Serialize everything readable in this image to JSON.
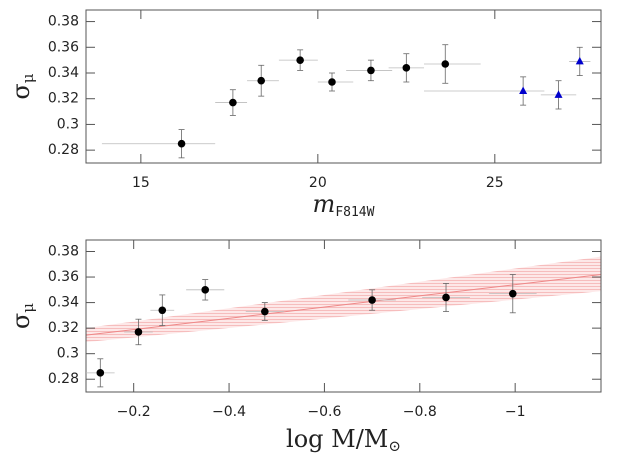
{
  "chart_data": [
    {
      "type": "scatter",
      "y_label": "σ",
      "y_label_sub": "μ",
      "x_label": "m",
      "x_label_sub": "F814W",
      "xlim": [
        13.45,
        28.0
      ],
      "ylim": [
        0.27,
        0.389
      ],
      "xticks": [
        15,
        20,
        25
      ],
      "yticks": [
        0.28,
        0.3,
        0.32,
        0.34,
        0.36,
        0.38
      ],
      "series": [
        {
          "color": "#000000",
          "marker": "circle",
          "x": [
            16.15,
            17.6,
            18.4,
            19.5,
            20.4,
            21.5,
            22.5,
            23.6
          ],
          "values": [
            0.285,
            0.317,
            0.334,
            0.35,
            0.333,
            0.342,
            0.344,
            0.347
          ],
          "yerr": [
            0.011,
            0.01,
            0.012,
            0.008,
            0.007,
            0.008,
            0.011,
            0.015
          ],
          "xlo": [
            13.9,
            17.1,
            18.0,
            18.9,
            20.0,
            20.8,
            22.0,
            23.0
          ],
          "xhi": [
            17.1,
            18.0,
            18.9,
            20.0,
            21.0,
            22.1,
            23.0,
            24.6
          ]
        },
        {
          "color": "#0000cc",
          "marker": "triangle",
          "x": [
            25.8,
            26.8,
            27.4
          ],
          "values": [
            0.326,
            0.323,
            0.349
          ],
          "yerr": [
            0.011,
            0.011,
            0.011
          ],
          "xlo": [
            23.0,
            26.3,
            27.1
          ],
          "xhi": [
            26.4,
            27.3,
            27.7
          ]
        }
      ]
    },
    {
      "type": "scatter",
      "y_label": "σ",
      "y_label_sub": "μ",
      "x_label": "log M/M",
      "x_label_sub": "⊙",
      "xlim": [
        -0.1,
        -1.18
      ],
      "ylim": [
        0.27,
        0.389
      ],
      "xticks": [
        {
          "value": -0.2,
          "label": "−0.2"
        },
        {
          "value": -0.4,
          "label": "−0.4"
        },
        {
          "value": -0.6,
          "label": "−0.6"
        },
        {
          "value": -0.8,
          "label": "−0.8"
        },
        {
          "value": -1,
          "label": "−1"
        }
      ],
      "yticks": [
        0.28,
        0.3,
        0.32,
        0.34,
        0.36,
        0.38
      ],
      "series": [
        {
          "color": "#000000",
          "marker": "circle",
          "x": [
            -0.13,
            -0.21,
            -0.26,
            -0.35,
            -0.475,
            -0.7,
            -0.855,
            -0.995
          ],
          "values": [
            0.285,
            0.317,
            0.334,
            0.35,
            0.333,
            0.342,
            0.344,
            0.347
          ],
          "yerr": [
            0.011,
            0.01,
            0.012,
            0.008,
            0.007,
            0.008,
            0.011,
            0.015
          ],
          "xerr": [
            0.03,
            0.03,
            0.025,
            0.04,
            0.04,
            0.05,
            0.05,
            0.05
          ]
        }
      ],
      "fit": {
        "color": "#e88",
        "x": [
          -0.1,
          -1.18
        ],
        "values": [
          0.3145,
          0.362
        ],
        "band_lo": [
          0.309,
          0.349
        ],
        "band_hi": [
          0.32,
          0.376
        ]
      }
    }
  ]
}
